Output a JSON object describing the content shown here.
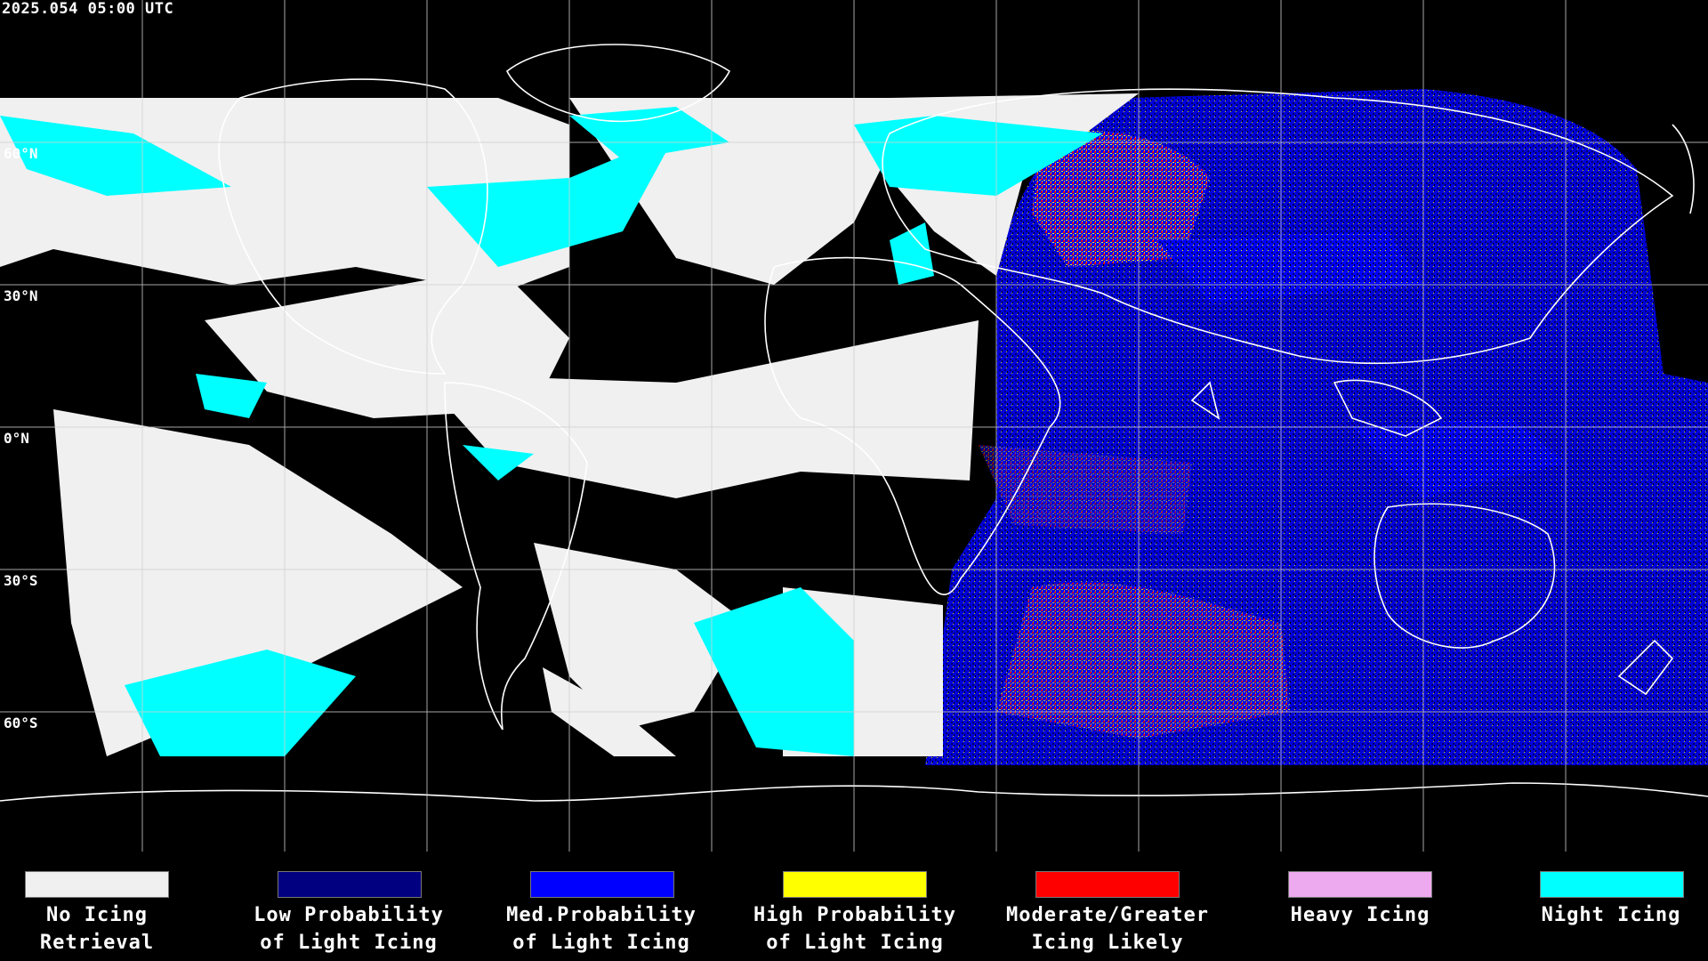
{
  "timestamp": "2025.054 05:00 UTC",
  "lat_labels": [
    "60°N",
    "30°N",
    "0°N",
    "30°S",
    "60°S"
  ],
  "legend": [
    {
      "line1": "No Icing",
      "line2": "Retrieval",
      "color": "#f0f0f0"
    },
    {
      "line1": "Low Probability",
      "line2": "of Light Icing",
      "color": "#000080"
    },
    {
      "line1": "Med.Probability",
      "line2": "of Light Icing",
      "color": "#0000ff"
    },
    {
      "line1": "High Probability",
      "line2": "of Light Icing",
      "color": "#ffff00"
    },
    {
      "line1": "Moderate/Greater",
      "line2": "Icing Likely",
      "color": "#ff0000"
    },
    {
      "line1": "Heavy Icing",
      "line2": "",
      "color": "#eeaaee"
    },
    {
      "line1": "Night Icing",
      "line2": "",
      "color": "#00ffff"
    }
  ]
}
